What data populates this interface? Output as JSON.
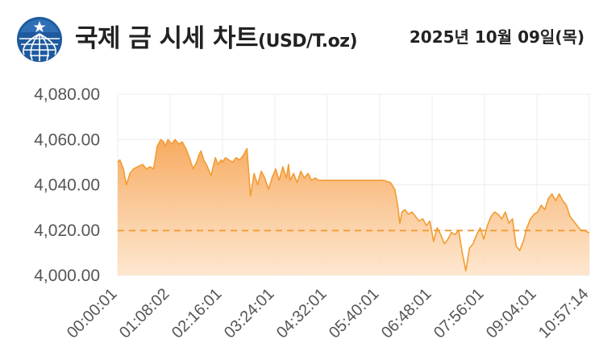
{
  "header": {
    "title": "국제 금 시세 차트",
    "unit": "(USD/T.oz)",
    "date": "2025년 10월 09일(목)",
    "logo_icon": "globe-logo-icon"
  },
  "colors": {
    "line": "#f39c32",
    "fill_top": "#f7a657",
    "fill_bottom": "#fde3c8",
    "reference": "#f39c32",
    "grid": "#ececec"
  },
  "chart_data": {
    "type": "area",
    "title": "국제 금 시세 차트",
    "xlabel": "",
    "ylabel": "",
    "ylim": [
      4000,
      4080
    ],
    "y_ticks": [
      "4,080.00",
      "4,060.00",
      "4,040.00",
      "4,020.00",
      "4,000.00"
    ],
    "x_ticks": [
      "00:00:01",
      "01:08:02",
      "02:16:01",
      "03:24:01",
      "04:32:01",
      "05:40:01",
      "06:48:01",
      "07:56:01",
      "09:04:01",
      "10:57:14"
    ],
    "reference_line": 4019.8,
    "grid": true,
    "series": [
      {
        "x_minutes": [
          0,
          3,
          8,
          12,
          15,
          17,
          22,
          28,
          35,
          40,
          45,
          50,
          55,
          60,
          64,
          66,
          70,
          75,
          80,
          85,
          90,
          95,
          100,
          105,
          110,
          113,
          116,
          120,
          125,
          130,
          133,
          136,
          140,
          144,
          146,
          150,
          155,
          160,
          165,
          170,
          175,
          180,
          185,
          190,
          195,
          200,
          205,
          210,
          215,
          220,
          225,
          230,
          235,
          238,
          240,
          245,
          250,
          255,
          260,
          265,
          270,
          275,
          280,
          290,
          300,
          310,
          320,
          330,
          340,
          350,
          360,
          370,
          380,
          386,
          390,
          393,
          396,
          400,
          405,
          410,
          415,
          420,
          425,
          430,
          435,
          440,
          445,
          450,
          455,
          460,
          465,
          470,
          475,
          480,
          485,
          490,
          495,
          500,
          505,
          510,
          515,
          520,
          525,
          530,
          535,
          540,
          545,
          550,
          555,
          560,
          565,
          570,
          575,
          580,
          585,
          590,
          595,
          600,
          605,
          610,
          615,
          620,
          625,
          630,
          635,
          640,
          645,
          650,
          655,
          657
        ],
        "values": [
          4050,
          4051,
          4047,
          4040,
          4043,
          4045,
          4047,
          4048,
          4049,
          4047,
          4048,
          4047,
          4057,
          4060,
          4059,
          4057,
          4060,
          4058,
          4060,
          4058,
          4059,
          4056,
          4052,
          4047,
          4050,
          4053,
          4055,
          4051,
          4048,
          4044,
          4048,
          4052,
          4049,
          4051,
          4050,
          4052,
          4051,
          4050,
          4052,
          4051,
          4053,
          4056,
          4035,
          4045,
          4040,
          4046,
          4043,
          4038,
          4043,
          4047,
          4042,
          4048,
          4043,
          4049,
          4042,
          4045,
          4041,
          4046,
          4043,
          4045,
          4042,
          4043,
          4042,
          4042,
          4042,
          4042,
          4042,
          4042,
          4042,
          4042,
          4042,
          4042,
          4041,
          4038,
          4031,
          4023,
          4028,
          4029,
          4027,
          4028,
          4026,
          4024,
          4025,
          4022,
          4024,
          4015,
          4021,
          4018,
          4014,
          4016,
          4019,
          4018,
          4020,
          4010,
          4002,
          4012,
          4014,
          4018,
          4021,
          4016,
          4022,
          4026,
          4028,
          4027,
          4025,
          4028,
          4023,
          4025,
          4013,
          4011,
          4015,
          4021,
          4025,
          4027,
          4028,
          4031,
          4029,
          4034,
          4036,
          4033,
          4036,
          4033,
          4031,
          4026,
          4024,
          4022,
          4020,
          4020,
          4019,
          4019
        ]
      }
    ]
  }
}
